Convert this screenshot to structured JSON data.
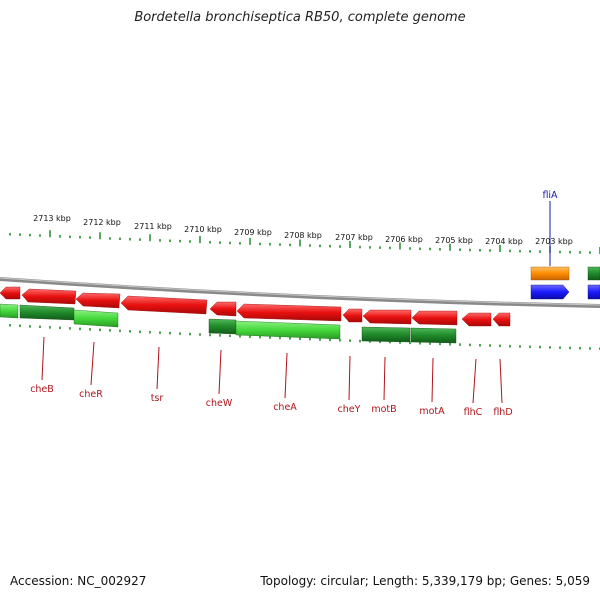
{
  "title": "Bordetella bronchiseptica RB50, complete genome",
  "footer": {
    "accession_label": "Accession:",
    "accession": "NC_002927",
    "summary": "Topology: circular; Length: 5,339,179 bp; Genes: 5,059"
  },
  "colors": {
    "forward_strand": "#e81010",
    "reverse_strand_light": "#44d83c",
    "reverse_strand_dark": "#1f8a2a",
    "rna_orange": "#ff8c00",
    "blue_feature": "#1a1aff",
    "backbone": "#8a8a8a",
    "ticks": "#1f8a2a",
    "label_red": "#b0141a",
    "label_blue": "#1a1aa8"
  },
  "scale": {
    "labels": [
      "2713 kbp",
      "2712 kbp",
      "2711 kbp",
      "2710 kbp",
      "2709 kbp",
      "2708 kbp",
      "2707 kbp",
      "2706 kbp",
      "2705 kbp",
      "2704 kbp",
      "2703 kbp"
    ]
  },
  "genes": [
    {
      "name": "cheB"
    },
    {
      "name": "cheR"
    },
    {
      "name": "tsr"
    },
    {
      "name": "cheW"
    },
    {
      "name": "cheA"
    },
    {
      "name": "cheY"
    },
    {
      "name": "motB"
    },
    {
      "name": "motA"
    },
    {
      "name": "flhC"
    },
    {
      "name": "flhD"
    }
  ],
  "special_gene": {
    "name": "fliA"
  }
}
